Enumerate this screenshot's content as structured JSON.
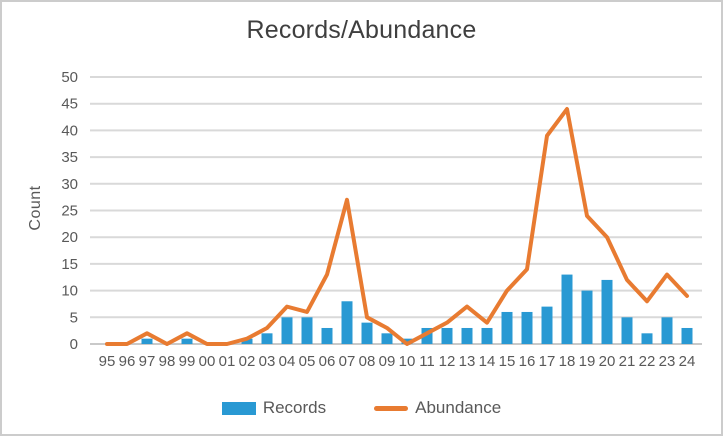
{
  "chart_data": {
    "type": "combo",
    "title": "Records/Abundance",
    "xlabel": "",
    "ylabel": "Count",
    "categories": [
      "95",
      "96",
      "97",
      "98",
      "99",
      "00",
      "01",
      "02",
      "03",
      "04",
      "05",
      "06",
      "07",
      "08",
      "09",
      "10",
      "11",
      "12",
      "13",
      "14",
      "15",
      "16",
      "17",
      "18",
      "19",
      "20",
      "21",
      "22",
      "23",
      "24"
    ],
    "series": [
      {
        "name": "Records",
        "type": "bar",
        "color": "#2999d3",
        "values": [
          0,
          0,
          1,
          0,
          1,
          0,
          0,
          1,
          2,
          5,
          5,
          3,
          8,
          4,
          2,
          1,
          3,
          3,
          3,
          3,
          6,
          6,
          7,
          13,
          10,
          12,
          5,
          2,
          5,
          3
        ]
      },
      {
        "name": "Abundance",
        "type": "line",
        "color": "#e87b31",
        "values": [
          0,
          0,
          2,
          0,
          2,
          0,
          0,
          1,
          3,
          7,
          6,
          13,
          27,
          5,
          3,
          0,
          2,
          4,
          7,
          4,
          10,
          14,
          39,
          44,
          24,
          20,
          12,
          8,
          13,
          9
        ]
      }
    ],
    "ylim": [
      0,
      50
    ],
    "yticks": [
      0,
      5,
      10,
      15,
      20,
      25,
      30,
      35,
      40,
      45,
      50
    ],
    "grid": true,
    "legend_position": "bottom",
    "colors": {
      "gridline": "#d9d9d9",
      "axis_line": "#c9c9c9",
      "tick_text": "#595959",
      "title_text": "#3f3f3f"
    }
  }
}
